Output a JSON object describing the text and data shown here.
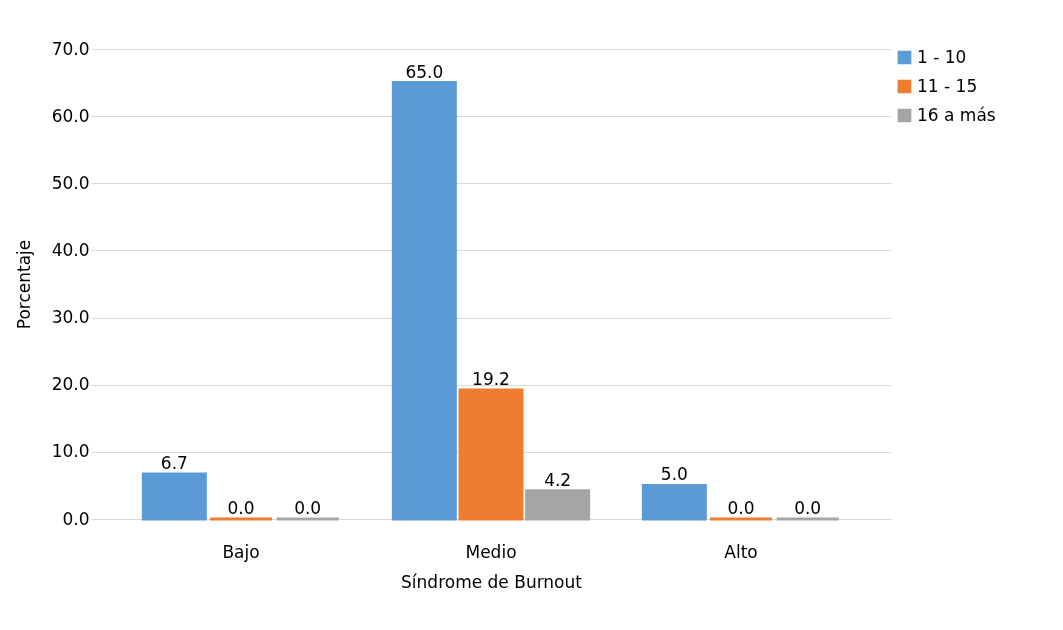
{
  "chart_data": {
    "type": "bar",
    "xlabel": "Síndrome de Burnout",
    "ylabel": "Porcentaje",
    "categories": [
      "Bajo",
      "Medio",
      "Alto"
    ],
    "series": [
      {
        "name": "1 - 10",
        "color": "#5b9bd5",
        "values": [
          6.7,
          65.0,
          5.0
        ],
        "value_labels": [
          "6.7",
          "65.0",
          "5.0"
        ]
      },
      {
        "name": "11 - 15",
        "color": "#ed7d31",
        "values": [
          0.0,
          19.2,
          0.0
        ],
        "value_labels": [
          "0.0",
          "19.2",
          "0.0"
        ]
      },
      {
        "name": "16 a más",
        "color": "#a5a5a5",
        "values": [
          0.0,
          4.2,
          0.0
        ],
        "value_labels": [
          "0.0",
          "4.2",
          "0.0"
        ]
      }
    ],
    "ylim": [
      0,
      70
    ],
    "yticks": [
      {
        "value": 0,
        "label": "0.0"
      },
      {
        "value": 10,
        "label": "10.0"
      },
      {
        "value": 20,
        "label": "20.0"
      },
      {
        "value": 30,
        "label": "30.0"
      },
      {
        "value": 40,
        "label": "40.0"
      },
      {
        "value": 50,
        "label": "50.0"
      },
      {
        "value": 60,
        "label": "60.0"
      },
      {
        "value": 70,
        "label": "70.0"
      }
    ],
    "grid": "y",
    "legend": "top right"
  }
}
